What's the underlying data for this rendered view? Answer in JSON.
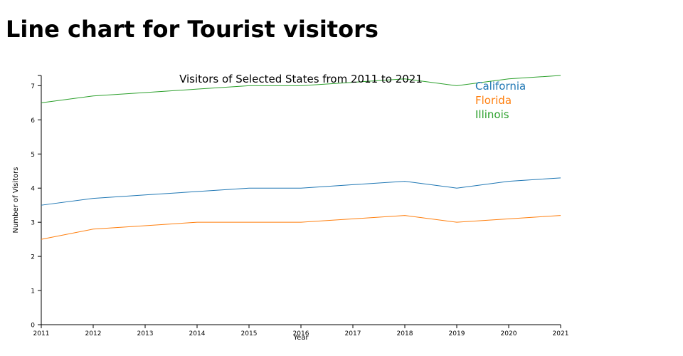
{
  "page": {
    "title": "Line chart for Tourist visitors"
  },
  "chart_data": {
    "type": "line",
    "title": "Visitors of Selected States from 2011 to 2021",
    "xlabel": "Year",
    "ylabel": "Number of Visitors",
    "x": [
      2011,
      2012,
      2013,
      2014,
      2015,
      2016,
      2017,
      2018,
      2019,
      2020,
      2021
    ],
    "xlim": [
      2011,
      2021
    ],
    "ylim": [
      0,
      7.3
    ],
    "yticks": [
      0,
      1,
      2,
      3,
      4,
      5,
      6,
      7
    ],
    "grid": false,
    "legend_position": "top-right",
    "series": [
      {
        "name": "California",
        "color": "#1f77b4",
        "values": [
          3.5,
          3.7,
          3.8,
          3.9,
          4.0,
          4.0,
          4.1,
          4.2,
          4.0,
          4.2,
          4.3
        ]
      },
      {
        "name": "Florida",
        "color": "#ff7f0e",
        "values": [
          2.5,
          2.8,
          2.9,
          3.0,
          3.0,
          3.0,
          3.1,
          3.2,
          3.0,
          3.1,
          3.2
        ]
      },
      {
        "name": "Illinois",
        "color": "#2ca02c",
        "values": [
          6.5,
          6.7,
          6.8,
          6.9,
          7.0,
          7.0,
          7.1,
          7.2,
          7.0,
          7.2,
          7.3
        ]
      }
    ]
  }
}
